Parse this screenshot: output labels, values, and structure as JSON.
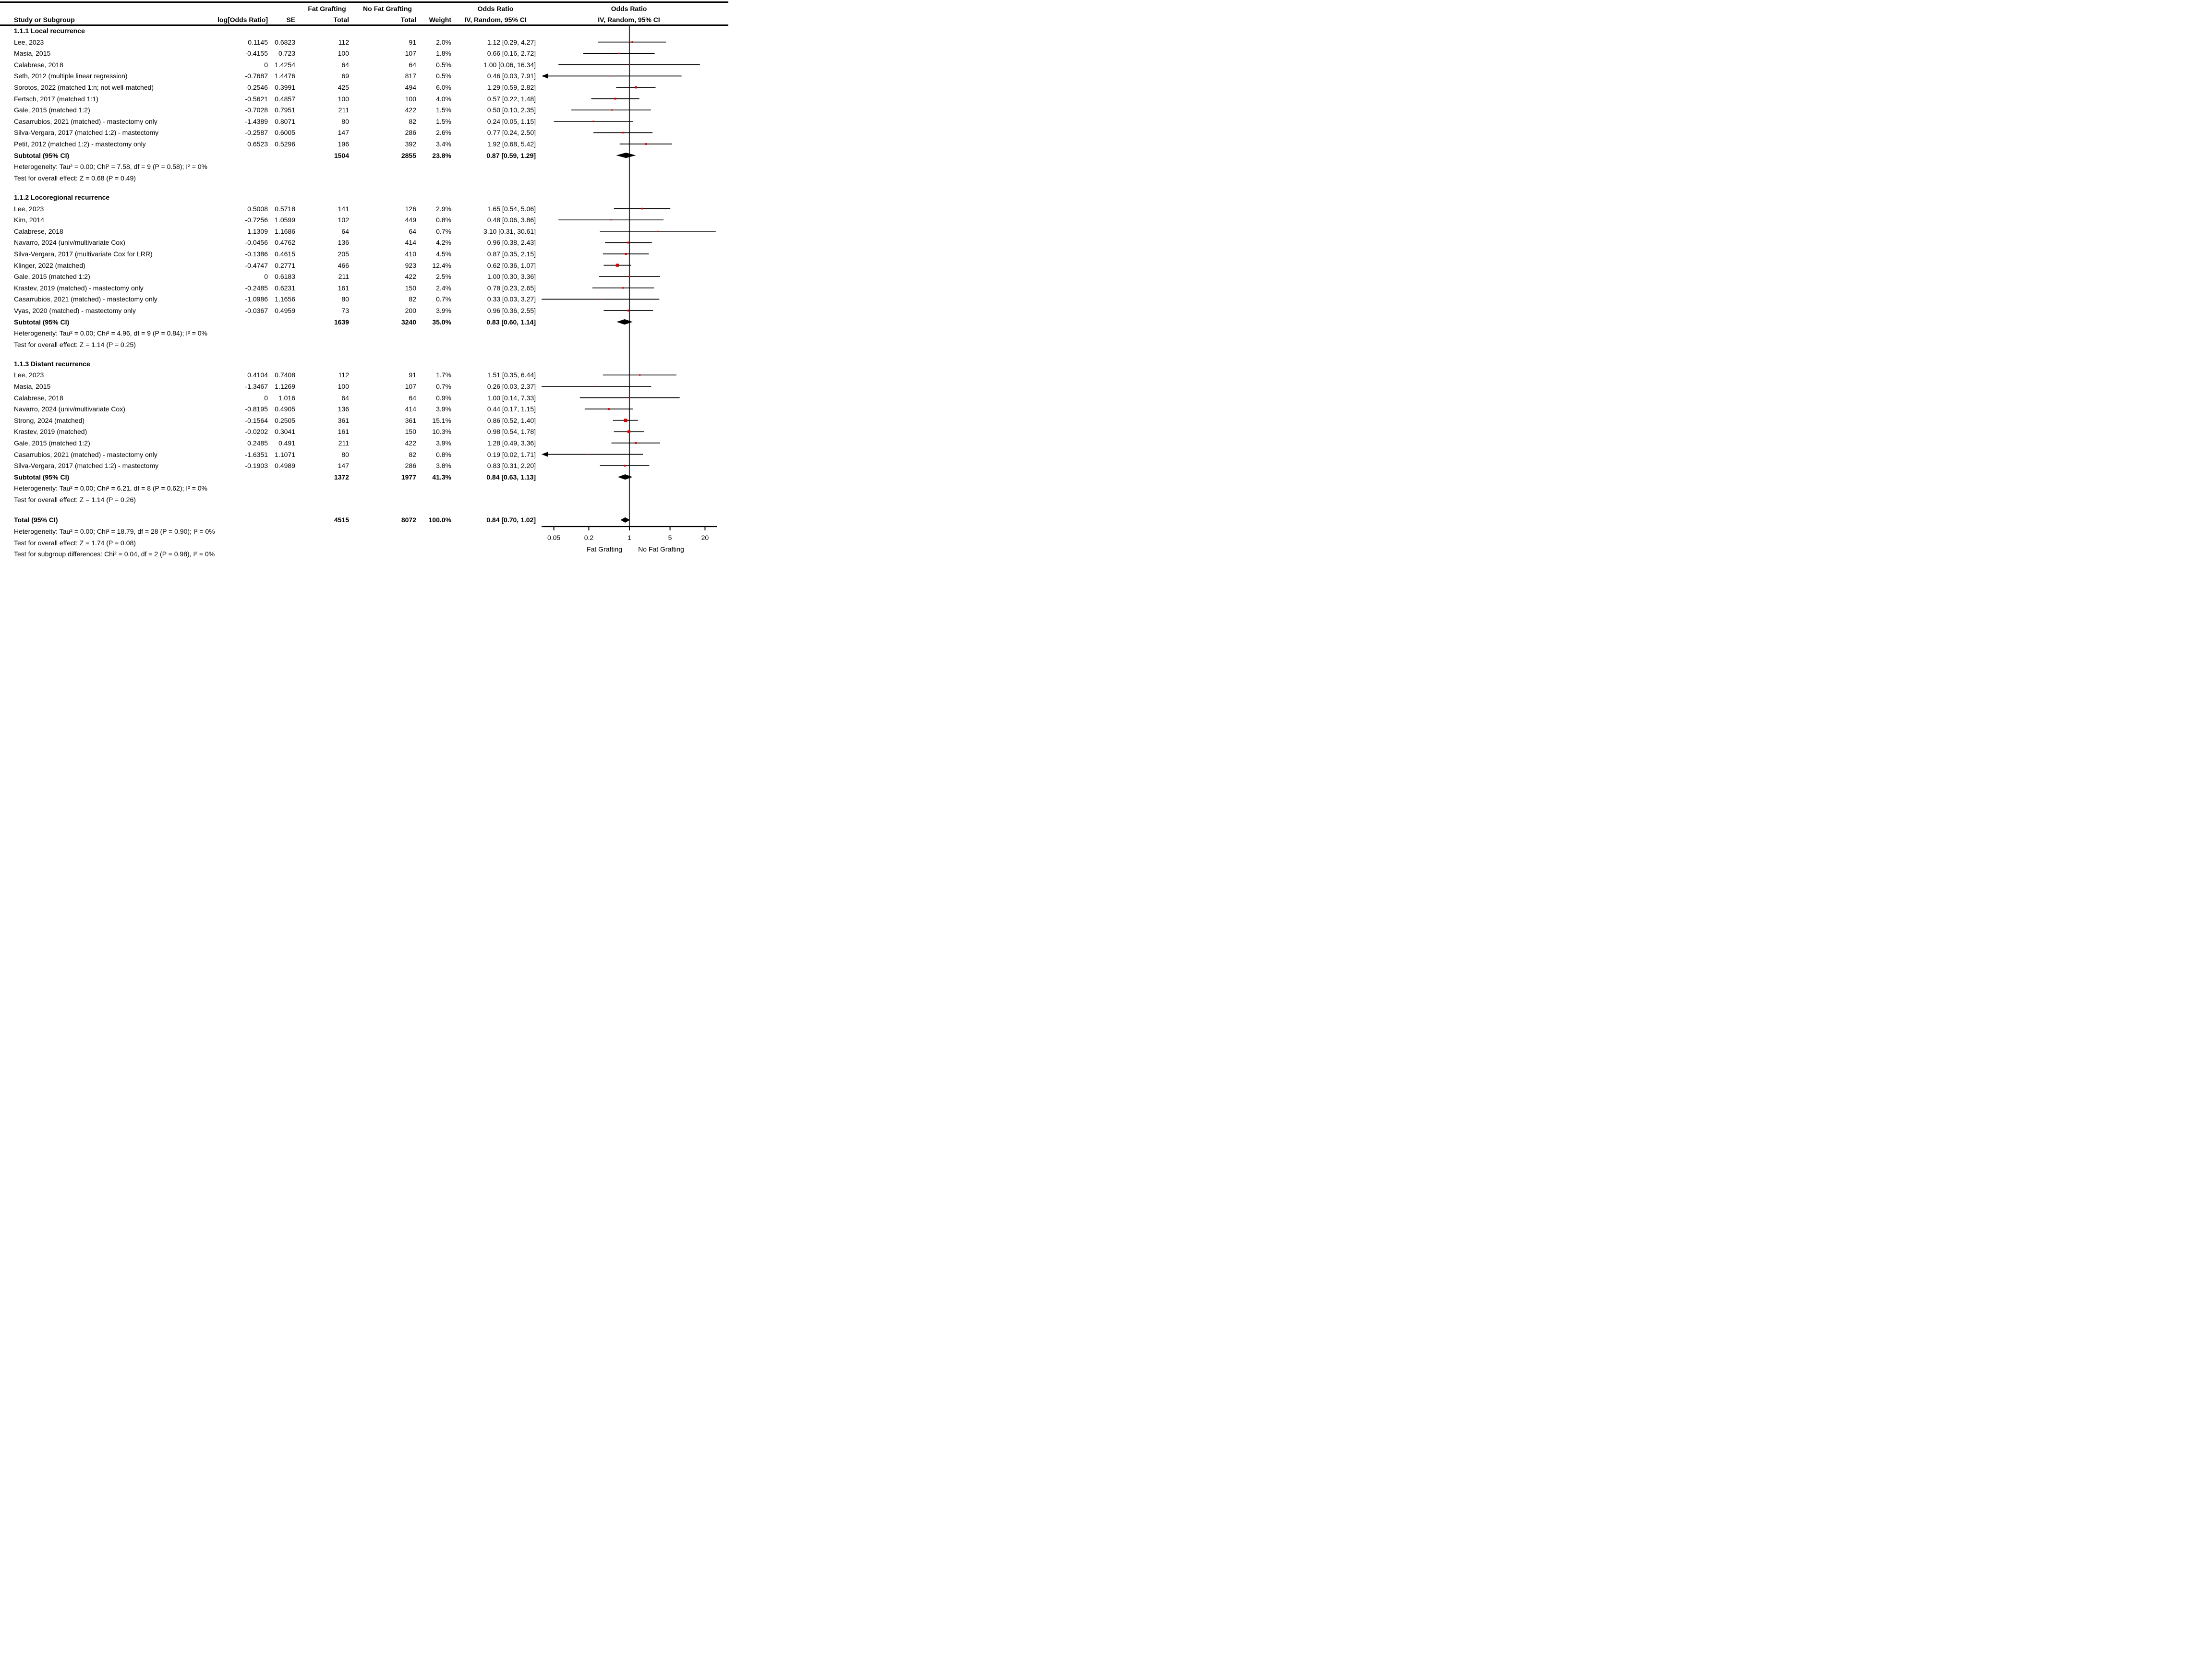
{
  "header": {
    "study": "Study or Subgroup",
    "log_or": "log[Odds Ratio]",
    "se": "SE",
    "fat_grafting": "Fat Grafting",
    "no_fat_grafting": "No Fat Grafting",
    "total1": "Total",
    "total2": "Total",
    "weight": "Weight",
    "odds_ratio_text": "Odds Ratio",
    "iv_random_text": "IV, Random, 95% CI",
    "odds_ratio_plot": "Odds Ratio",
    "iv_random_plot": "IV, Random, 95% CI"
  },
  "labels": {
    "subtotal": "Subtotal (95% CI)",
    "total": "Total (95% CI)"
  },
  "colors": {
    "marker_red": "#dd0000",
    "null_line_gray": "#3a3a3a",
    "line_black": "#000000"
  },
  "chart_data": {
    "type": "forest",
    "effect_measure": "Odds Ratio, IV, Random, 95% CI",
    "axis": {
      "scale": "log",
      "ticks": [
        0.05,
        0.2,
        1,
        5,
        20
      ],
      "tick_labels": [
        "0.05",
        "0.2",
        "1",
        "5",
        "20"
      ],
      "left_caption": "Fat Grafting",
      "right_caption": "No Fat Grafting"
    },
    "sections": [
      {
        "title": "1.1.1 Local recurrence",
        "studies": [
          {
            "n": "Lee, 2023",
            "lor": "0.1145",
            "se": "0.6823",
            "t1": "112",
            "t2": "91",
            "w": "2.0%",
            "wn": 2.0,
            "ci": "1.12 [0.29, 4.27]",
            "or": 1.12,
            "lo": 0.29,
            "hi": 4.27
          },
          {
            "n": "Masia, 2015",
            "lor": "-0.4155",
            "se": "0.723",
            "t1": "100",
            "t2": "107",
            "w": "1.8%",
            "wn": 1.8,
            "ci": "0.66 [0.16, 2.72]",
            "or": 0.66,
            "lo": 0.16,
            "hi": 2.72
          },
          {
            "n": "Calabrese, 2018",
            "lor": "0",
            "se": "1.4254",
            "t1": "64",
            "t2": "64",
            "w": "0.5%",
            "wn": 0.5,
            "ci": "1.00 [0.06, 16.34]",
            "or": 1.0,
            "lo": 0.06,
            "hi": 16.34
          },
          {
            "n": "Seth, 2012 (multiple linear regression)",
            "lor": "-0.7687",
            "se": "1.4476",
            "t1": "69",
            "t2": "817",
            "w": "0.5%",
            "wn": 0.5,
            "ci": "0.46 [0.03, 7.91]",
            "or": 0.46,
            "lo": 0.03,
            "hi": 7.91,
            "al": true
          },
          {
            "n": "Sorotos, 2022 (matched 1:n; not well-matched)",
            "lor": "0.2546",
            "se": "0.3991",
            "t1": "425",
            "t2": "494",
            "w": "6.0%",
            "wn": 6.0,
            "ci": "1.29 [0.59, 2.82]",
            "or": 1.29,
            "lo": 0.59,
            "hi": 2.82
          },
          {
            "n": "Fertsch, 2017 (matched 1:1)",
            "lor": "-0.5621",
            "se": "0.4857",
            "t1": "100",
            "t2": "100",
            "w": "4.0%",
            "wn": 4.0,
            "ci": "0.57 [0.22, 1.48]",
            "or": 0.57,
            "lo": 0.22,
            "hi": 1.48
          },
          {
            "n": "Gale, 2015 (matched 1:2)",
            "lor": "-0.7028",
            "se": "0.7951",
            "t1": "211",
            "t2": "422",
            "w": "1.5%",
            "wn": 1.5,
            "ci": "0.50 [0.10, 2.35]",
            "or": 0.5,
            "lo": 0.1,
            "hi": 2.35
          },
          {
            "n": "Casarrubios, 2021 (matched) - mastectomy only",
            "lor": "-1.4389",
            "se": "0.8071",
            "t1": "80",
            "t2": "82",
            "w": "1.5%",
            "wn": 1.5,
            "ci": "0.24 [0.05, 1.15]",
            "or": 0.24,
            "lo": 0.05,
            "hi": 1.15
          },
          {
            "n": "Silva-Vergara, 2017 (matched 1:2) - mastectomy",
            "lor": "-0.2587",
            "se": "0.6005",
            "t1": "147",
            "t2": "286",
            "w": "2.6%",
            "wn": 2.6,
            "ci": "0.77 [0.24, 2.50]",
            "or": 0.77,
            "lo": 0.24,
            "hi": 2.5
          },
          {
            "n": "Petit, 2012 (matched 1:2) - mastectomy only",
            "lor": "0.6523",
            "se": "0.5296",
            "t1": "196",
            "t2": "392",
            "w": "3.4%",
            "wn": 3.4,
            "ci": "1.92 [0.68, 5.42]",
            "or": 1.92,
            "lo": 0.68,
            "hi": 5.42
          }
        ],
        "subtotal": {
          "t1": "1504",
          "t2": "2855",
          "w": "23.8%",
          "ci": "0.87 [0.59, 1.29]",
          "or": 0.87,
          "lo": 0.59,
          "hi": 1.29
        },
        "heterogeneity": "Heterogeneity: Tau² = 0.00; Chi² = 7.58, df = 9 (P = 0.58); I² = 0%",
        "overall_test": "Test for overall effect: Z = 0.68 (P = 0.49)"
      },
      {
        "title": "1.1.2 Locoregional recurrence",
        "studies": [
          {
            "n": "Lee, 2023",
            "lor": "0.5008",
            "se": "0.5718",
            "t1": "141",
            "t2": "126",
            "w": "2.9%",
            "wn": 2.9,
            "ci": "1.65 [0.54, 5.06]",
            "or": 1.65,
            "lo": 0.54,
            "hi": 5.06
          },
          {
            "n": "Kim, 2014",
            "lor": "-0.7256",
            "se": "1.0599",
            "t1": "102",
            "t2": "449",
            "w": "0.8%",
            "wn": 0.8,
            "ci": "0.48 [0.06, 3.86]",
            "or": 0.48,
            "lo": 0.06,
            "hi": 3.86
          },
          {
            "n": "Calabrese, 2018",
            "lor": "1.1309",
            "se": "1.1686",
            "t1": "64",
            "t2": "64",
            "w": "0.7%",
            "wn": 0.7,
            "ci": "3.10 [0.31, 30.61]",
            "or": 3.1,
            "lo": 0.31,
            "hi": 30.61
          },
          {
            "n": "Navarro, 2024 (univ/multivariate Cox)",
            "lor": "-0.0456",
            "se": "0.4762",
            "t1": "136",
            "t2": "414",
            "w": "4.2%",
            "wn": 4.2,
            "ci": "0.96 [0.38, 2.43]",
            "or": 0.96,
            "lo": 0.38,
            "hi": 2.43
          },
          {
            "n": "Silva-Vergara, 2017 (multivariate Cox for LRR)",
            "lor": "-0.1386",
            "se": "0.4615",
            "t1": "205",
            "t2": "410",
            "w": "4.5%",
            "wn": 4.5,
            "ci": "0.87 [0.35, 2.15]",
            "or": 0.87,
            "lo": 0.35,
            "hi": 2.15
          },
          {
            "n": "Klinger, 2022 (matched)",
            "lor": "-0.4747",
            "se": "0.2771",
            "t1": "466",
            "t2": "923",
            "w": "12.4%",
            "wn": 12.4,
            "ci": "0.62 [0.36, 1.07]",
            "or": 0.62,
            "lo": 0.36,
            "hi": 1.07
          },
          {
            "n": "Gale, 2015 (matched 1:2)",
            "lor": "0",
            "se": "0.6183",
            "t1": "211",
            "t2": "422",
            "w": "2.5%",
            "wn": 2.5,
            "ci": "1.00 [0.30, 3.36]",
            "or": 1.0,
            "lo": 0.3,
            "hi": 3.36
          },
          {
            "n": "Krastev, 2019 (matched) - mastectomy only",
            "lor": "-0.2485",
            "se": "0.6231",
            "t1": "161",
            "t2": "150",
            "w": "2.4%",
            "wn": 2.4,
            "ci": "0.78 [0.23, 2.65]",
            "or": 0.78,
            "lo": 0.23,
            "hi": 2.65
          },
          {
            "n": "Casarrubios, 2021 (matched) - mastectomy only",
            "lor": "-1.0986",
            "se": "1.1656",
            "t1": "80",
            "t2": "82",
            "w": "0.7%",
            "wn": 0.7,
            "ci": "0.33 [0.03, 3.27]",
            "or": 0.33,
            "lo": 0.03,
            "hi": 3.27
          },
          {
            "n": "Vyas, 2020 (matched) - mastectomy only",
            "lor": "-0.0367",
            "se": "0.4959",
            "t1": "73",
            "t2": "200",
            "w": "3.9%",
            "wn": 3.9,
            "ci": "0.96 [0.36, 2.55]",
            "or": 0.96,
            "lo": 0.36,
            "hi": 2.55
          }
        ],
        "subtotal": {
          "t1": "1639",
          "t2": "3240",
          "w": "35.0%",
          "ci": "0.83 [0.60, 1.14]",
          "or": 0.83,
          "lo": 0.6,
          "hi": 1.14
        },
        "heterogeneity": "Heterogeneity: Tau² = 0.00; Chi² = 4.96, df = 9 (P = 0.84); I² = 0%",
        "overall_test": "Test for overall effect: Z = 1.14 (P = 0.25)"
      },
      {
        "title": "1.1.3 Distant recurrence",
        "studies": [
          {
            "n": "Lee, 2023",
            "lor": "0.4104",
            "se": "0.7408",
            "t1": "112",
            "t2": "91",
            "w": "1.7%",
            "wn": 1.7,
            "ci": "1.51 [0.35, 6.44]",
            "or": 1.51,
            "lo": 0.35,
            "hi": 6.44
          },
          {
            "n": "Masia, 2015",
            "lor": "-1.3467",
            "se": "1.1269",
            "t1": "100",
            "t2": "107",
            "w": "0.7%",
            "wn": 0.7,
            "ci": "0.26 [0.03, 2.37]",
            "or": 0.26,
            "lo": 0.03,
            "hi": 2.37
          },
          {
            "n": "Calabrese, 2018",
            "lor": "0",
            "se": "1.016",
            "t1": "64",
            "t2": "64",
            "w": "0.9%",
            "wn": 0.9,
            "ci": "1.00 [0.14, 7.33]",
            "or": 1.0,
            "lo": 0.14,
            "hi": 7.33
          },
          {
            "n": "Navarro, 2024 (univ/multivariate Cox)",
            "lor": "-0.8195",
            "se": "0.4905",
            "t1": "136",
            "t2": "414",
            "w": "3.9%",
            "wn": 3.9,
            "ci": "0.44 [0.17, 1.15]",
            "or": 0.44,
            "lo": 0.17,
            "hi": 1.15
          },
          {
            "n": "Strong, 2024 (matched)",
            "lor": "-0.1564",
            "se": "0.2505",
            "t1": "361",
            "t2": "361",
            "w": "15.1%",
            "wn": 15.1,
            "ci": "0.86 [0.52, 1.40]",
            "or": 0.86,
            "lo": 0.52,
            "hi": 1.4
          },
          {
            "n": "Krastev, 2019 (matched)",
            "lor": "-0.0202",
            "se": "0.3041",
            "t1": "161",
            "t2": "150",
            "w": "10.3%",
            "wn": 10.3,
            "ci": "0.98 [0.54, 1.78]",
            "or": 0.98,
            "lo": 0.54,
            "hi": 1.78
          },
          {
            "n": "Gale, 2015 (matched 1:2)",
            "lor": "0.2485",
            "se": "0.491",
            "t1": "211",
            "t2": "422",
            "w": "3.9%",
            "wn": 3.9,
            "ci": "1.28 [0.49, 3.36]",
            "or": 1.28,
            "lo": 0.49,
            "hi": 3.36
          },
          {
            "n": "Casarrubios, 2021 (matched) - mastectomy only",
            "lor": "-1.6351",
            "se": "1.1071",
            "t1": "80",
            "t2": "82",
            "w": "0.8%",
            "wn": 0.8,
            "ci": "0.19 [0.02, 1.71]",
            "or": 0.19,
            "lo": 0.02,
            "hi": 1.71,
            "al": true
          },
          {
            "n": "Silva-Vergara, 2017 (matched 1:2) - mastectomy",
            "lor": "-0.1903",
            "se": "0.4989",
            "t1": "147",
            "t2": "286",
            "w": "3.8%",
            "wn": 3.8,
            "ci": "0.83 [0.31, 2.20]",
            "or": 0.83,
            "lo": 0.31,
            "hi": 2.2
          }
        ],
        "subtotal": {
          "t1": "1372",
          "t2": "1977",
          "w": "41.3%",
          "ci": "0.84 [0.63, 1.13]",
          "or": 0.84,
          "lo": 0.63,
          "hi": 1.13
        },
        "heterogeneity": "Heterogeneity: Tau² = 0.00; Chi² = 6.21, df = 8 (P = 0.62); I² = 0%",
        "overall_test": "Test for overall effect: Z = 1.14 (P = 0.26)"
      }
    ],
    "total": {
      "t1": "4515",
      "t2": "8072",
      "w": "100.0%",
      "ci": "0.84 [0.70, 1.02]",
      "or": 0.84,
      "lo": 0.7,
      "hi": 1.02
    },
    "footer_lines": [
      "Heterogeneity: Tau² = 0.00; Chi² = 18.79, df = 28 (P = 0.90); I² = 0%",
      "Test for overall effect: Z = 1.74 (P = 0.08)",
      "Test for subgroup differences: Chi² = 0.04, df = 2 (P = 0.98), I² = 0%"
    ]
  }
}
